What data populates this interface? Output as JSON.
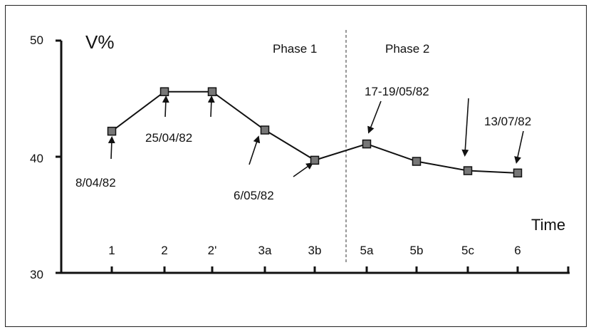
{
  "chart_data": {
    "type": "line",
    "ylabel": "V%",
    "xlabel": "Time",
    "ylim": [
      30,
      50
    ],
    "yticks": [
      "50",
      "40",
      "30"
    ],
    "categories": [
      "1",
      "2",
      "2'",
      "3a",
      "3b",
      "5a",
      "5b",
      "5c",
      "6"
    ],
    "values": [
      42.2,
      45.6,
      45.6,
      42.3,
      39.7,
      41.1,
      39.6,
      38.8,
      38.6
    ],
    "phases": [
      "Phase 1",
      "Phase 2"
    ],
    "annotations": [
      "8/04/82",
      "25/04/82",
      "6/05/82",
      "17-19/05/82",
      "13/07/82"
    ]
  }
}
